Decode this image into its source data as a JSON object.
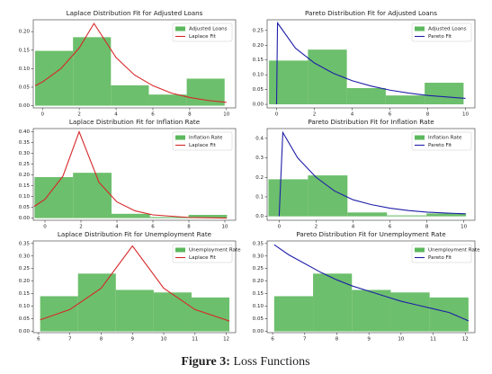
{
  "chart_data": [
    {
      "type": "histogram",
      "title": "Laplace Distribution Fit for Adjusted Loans",
      "hist": {
        "name": "Adjusted Loans",
        "color": "#5cb85c",
        "bins": [
          -0.4,
          1.66,
          3.72,
          5.78,
          7.84,
          9.9
        ],
        "counts": [
          0.148,
          0.185,
          0.055,
          0.03,
          0.073
        ]
      },
      "line": {
        "name": "Laplace Fit",
        "color": "#d62728",
        "x": [
          -0.4,
          0,
          1,
          2,
          2.8,
          4,
          5,
          6,
          7,
          8,
          9,
          10
        ],
        "values": [
          0.054,
          0.064,
          0.1,
          0.156,
          0.222,
          0.13,
          0.083,
          0.054,
          0.034,
          0.022,
          0.014,
          0.009
        ]
      },
      "xlim": [
        -0.5,
        10.5
      ],
      "ylim": [
        -0.006,
        0.232
      ],
      "xticks": [
        0,
        2,
        4,
        6,
        8,
        10
      ],
      "yticks": [
        {
          "value": 0,
          "label": "0.00"
        },
        {
          "value": 0.05,
          "label": "0.05"
        },
        {
          "value": 0.1,
          "label": "0.10"
        },
        {
          "value": 0.15,
          "label": "0.15"
        },
        {
          "value": 0.2,
          "label": "0.20"
        }
      ],
      "legend": "upper right"
    },
    {
      "type": "histogram",
      "title": "Pareto Distribution Fit for Adjusted Loans",
      "hist": {
        "name": "Adjusted Loans",
        "color": "#5cb85c",
        "bins": [
          -0.4,
          1.66,
          3.72,
          5.78,
          7.84,
          9.9
        ],
        "counts": [
          0.148,
          0.185,
          0.055,
          0.03,
          0.073
        ]
      },
      "line": {
        "name": "Pareto Fit",
        "color": "#1f1fa8",
        "x": [
          0,
          0.05,
          1,
          2,
          3,
          4,
          5,
          6,
          7,
          8,
          9,
          10
        ],
        "values": [
          0,
          0.275,
          0.19,
          0.14,
          0.105,
          0.08,
          0.062,
          0.048,
          0.038,
          0.03,
          0.025,
          0.02
        ]
      },
      "xlim": [
        -0.5,
        10.5
      ],
      "ylim": [
        -0.012,
        0.286
      ],
      "xticks": [
        0,
        2,
        4,
        6,
        8,
        10
      ],
      "yticks": [
        {
          "value": 0,
          "label": "0.00"
        },
        {
          "value": 0.05,
          "label": "0.05"
        },
        {
          "value": 0.1,
          "label": "0.10"
        },
        {
          "value": 0.15,
          "label": "0.15"
        },
        {
          "value": 0.2,
          "label": "0.20"
        },
        {
          "value": 0.25,
          "label": "0.25"
        }
      ],
      "legend": "upper right"
    },
    {
      "type": "histogram",
      "title": "Laplace Distribution Fit for Inflation Rate",
      "hist": {
        "name": "Inflation Rate",
        "color": "#5cb85c",
        "bins": [
          -0.58,
          1.56,
          3.7,
          5.84,
          7.98,
          10.12
        ],
        "counts": [
          0.19,
          0.21,
          0.02,
          0.005,
          0.015
        ]
      },
      "line": {
        "name": "Laplace Fit",
        "color": "#d62728",
        "x": [
          -0.6,
          0,
          1,
          1.9,
          3,
          4,
          5,
          6,
          8,
          10.1
        ],
        "values": [
          0.054,
          0.087,
          0.195,
          0.4,
          0.166,
          0.075,
          0.034,
          0.015,
          0.003,
          0
        ]
      },
      "xlim": [
        -0.65,
        10.6
      ],
      "ylim": [
        -0.01,
        0.415
      ],
      "xticks": [
        0,
        2,
        4,
        6,
        8,
        10
      ],
      "yticks": [
        {
          "value": 0,
          "label": "0.00"
        },
        {
          "value": 0.05,
          "label": "0.05"
        },
        {
          "value": 0.1,
          "label": "0.10"
        },
        {
          "value": 0.15,
          "label": "0.15"
        },
        {
          "value": 0.2,
          "label": "0.20"
        },
        {
          "value": 0.25,
          "label": "0.25"
        },
        {
          "value": 0.3,
          "label": "0.30"
        },
        {
          "value": 0.35,
          "label": "0.35"
        },
        {
          "value": 0.4,
          "label": "0.40"
        }
      ],
      "legend": "upper right"
    },
    {
      "type": "histogram",
      "title": "Pareto Distribution Fit for Inflation Rate",
      "hist": {
        "name": "Inflation Rate",
        "color": "#5cb85c",
        "bins": [
          -0.58,
          1.56,
          3.7,
          5.84,
          7.98,
          10.12
        ],
        "counts": [
          0.19,
          0.21,
          0.02,
          0.005,
          0.015
        ]
      },
      "line": {
        "name": "Pareto Fit",
        "color": "#1f1fa8",
        "x": [
          0,
          0.2,
          1,
          2,
          3,
          4,
          5,
          6,
          7,
          8,
          9,
          10.1
        ],
        "values": [
          0,
          0.43,
          0.3,
          0.2,
          0.13,
          0.085,
          0.06,
          0.042,
          0.03,
          0.022,
          0.017,
          0.013
        ]
      },
      "xlim": [
        -0.65,
        10.6
      ],
      "ylim": [
        -0.02,
        0.45
      ],
      "xticks": [
        0,
        2,
        4,
        6,
        8,
        10
      ],
      "yticks": [
        {
          "value": 0,
          "label": "0.0"
        },
        0.1,
        0.2,
        0.3,
        0.4
      ],
      "legend": "upper right"
    },
    {
      "type": "histogram",
      "title": "Laplace Distribution Fit for Unemployment Rate",
      "hist": {
        "name": "Unemployment Rate",
        "color": "#5cb85c",
        "bins": [
          6.05,
          7.26,
          8.47,
          9.68,
          10.89,
          12.1
        ],
        "counts": [
          0.14,
          0.23,
          0.165,
          0.155,
          0.135
        ]
      },
      "line": {
        "name": "Laplace Fit",
        "color": "#d62728",
        "x": [
          6.05,
          7,
          8,
          9,
          10,
          11,
          12.1
        ],
        "values": [
          0.046,
          0.087,
          0.172,
          0.34,
          0.172,
          0.087,
          0.041
        ]
      },
      "xlim": [
        5.83,
        12.3
      ],
      "ylim": [
        -0.005,
        0.36
      ],
      "xticks": [
        6,
        7,
        8,
        9,
        10,
        11,
        12
      ],
      "yticks": [
        {
          "value": 0,
          "label": "0.00"
        },
        {
          "value": 0.05,
          "label": "0.05"
        },
        {
          "value": 0.1,
          "label": "0.10"
        },
        {
          "value": 0.15,
          "label": "0.15"
        },
        {
          "value": 0.2,
          "label": "0.20"
        },
        {
          "value": 0.25,
          "label": "0.25"
        },
        {
          "value": 0.3,
          "label": "0.30"
        },
        {
          "value": 0.35,
          "label": "0.35"
        }
      ],
      "legend": "upper right"
    },
    {
      "type": "histogram",
      "title": "Pareto Distribution Fit for Unemployment Rate",
      "hist": {
        "name": "Unemployment Rate",
        "color": "#5cb85c",
        "bins": [
          6.05,
          7.26,
          8.47,
          9.68,
          10.89,
          12.1
        ],
        "counts": [
          0.14,
          0.23,
          0.165,
          0.155,
          0.135
        ]
      },
      "line": {
        "name": "Pareto Fit",
        "color": "#1f1fa8",
        "x": [
          6.05,
          6.5,
          7,
          7.5,
          8,
          8.5,
          9,
          9.5,
          10,
          10.5,
          11,
          11.5,
          12.1
        ],
        "values": [
          0.345,
          0.305,
          0.27,
          0.235,
          0.205,
          0.18,
          0.16,
          0.14,
          0.12,
          0.105,
          0.09,
          0.075,
          0.042
        ]
      },
      "xlim": [
        5.83,
        12.3
      ],
      "ylim": [
        -0.005,
        0.36
      ],
      "xticks": [
        6,
        7,
        8,
        9,
        10,
        11,
        12
      ],
      "yticks": [
        {
          "value": 0,
          "label": "0.00"
        },
        {
          "value": 0.05,
          "label": "0.05"
        },
        {
          "value": 0.1,
          "label": "0.10"
        },
        {
          "value": 0.15,
          "label": "0.15"
        },
        {
          "value": 0.2,
          "label": "0.20"
        },
        {
          "value": 0.25,
          "label": "0.25"
        },
        {
          "value": 0.3,
          "label": "0.30"
        },
        {
          "value": 0.35,
          "label": "0.35"
        }
      ],
      "legend": "upper right"
    }
  ],
  "caption": {
    "label": "Figure 3:",
    "text": "Loss Functions"
  }
}
